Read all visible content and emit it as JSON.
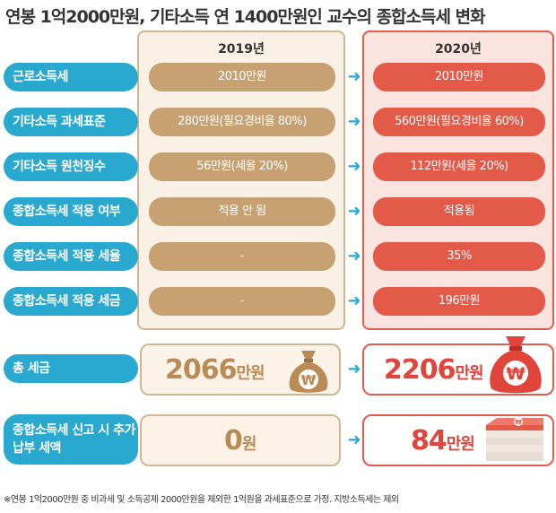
{
  "title": "연봉 1억2000만원, 기타소득 연 1400만원인 교수의 종합소득세 변화",
  "years": {
    "y2019": "2019년",
    "y2020": "2020년"
  },
  "rows": [
    {
      "label": "근로소득세",
      "v2019": "2010만원",
      "v2020": "2010만원"
    },
    {
      "label": "기타소득 과세표준",
      "v2019": "280만원(필요경비율 80%)",
      "v2020": "560만원(필요경비율 60%)"
    },
    {
      "label": "기타소득 원천징수",
      "v2019": "56만원(세율 20%)",
      "v2020": "112만원(세율 20%)"
    },
    {
      "label": "종합소득세 적용 여부",
      "v2019": "적용 안 됨",
      "v2020": "적용됨"
    },
    {
      "label": "종합소득세 적용 세율",
      "v2019": "-",
      "v2020": "35%"
    },
    {
      "label": "종합소득세 적용 세금",
      "v2019": "-",
      "v2020": "196만원"
    }
  ],
  "total": {
    "label": "총 세금",
    "v2019_num": "2066",
    "v2019_unit": "만원",
    "v2020_num": "2206",
    "v2020_unit": "만원"
  },
  "extra": {
    "label": "종합소득세 신고 시 추가납부 세액",
    "v2019_num": "0",
    "v2019_unit": "원",
    "v2020_num": "84",
    "v2020_unit": "만원"
  },
  "icons": {
    "bag_symbol": "₩",
    "arrow_symbol": "➜"
  },
  "colors": {
    "label_bg": "#29a9cf",
    "tan": "#c8a173",
    "red": "#e45a49"
  },
  "footnote": "※연봉 1억2000만원 중 비과세 및 소득공제 2000만원을 제외한 1억원을 과세표준으로 가정. 지방소득세는 제외"
}
